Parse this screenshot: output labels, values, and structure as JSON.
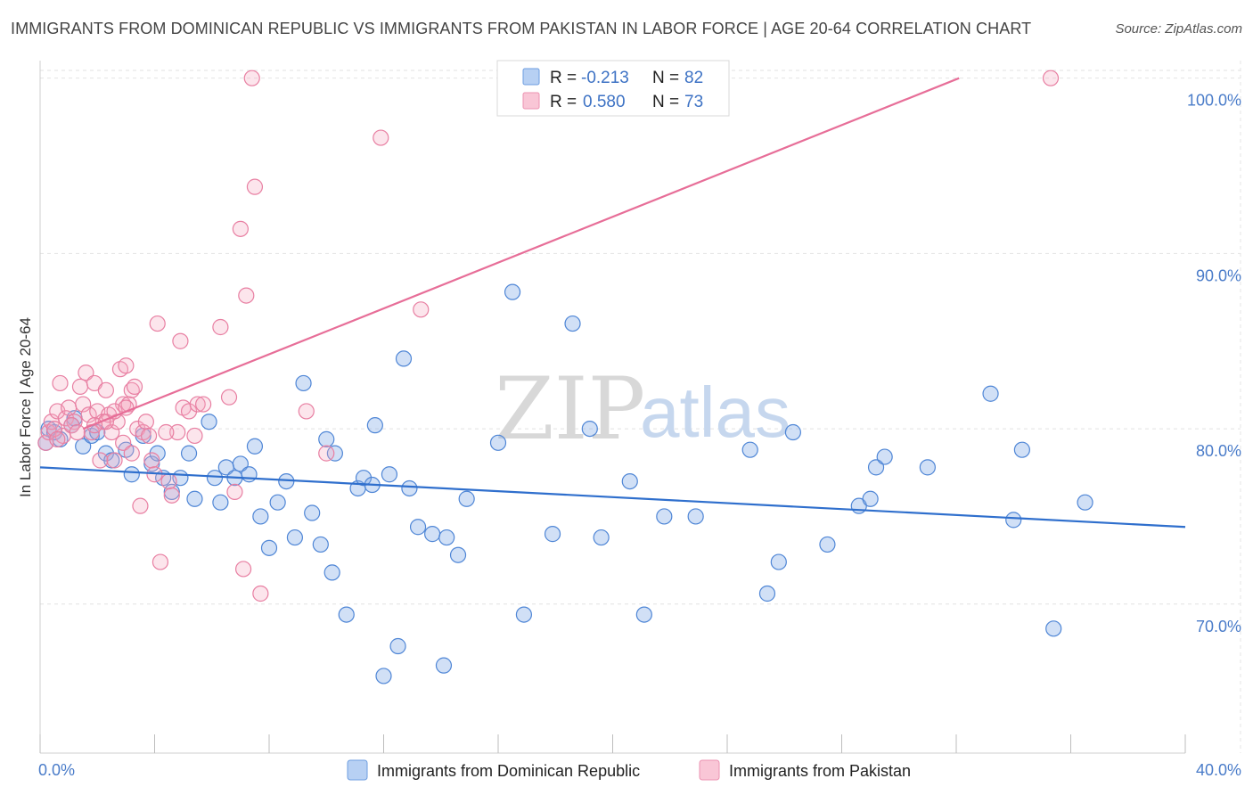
{
  "header": {
    "title": "IMMIGRANTS FROM DOMINICAN REPUBLIC VS IMMIGRANTS FROM PAKISTAN IN LABOR FORCE | AGE 20-64 CORRELATION CHART",
    "source": "Source: ZipAtlas.com"
  },
  "watermark": {
    "zip": "ZIP",
    "atlas": "atlas"
  },
  "legend_stats": {
    "r_label": "R =",
    "n_label": "N =",
    "series1": {
      "r": "-0.213",
      "n": "82"
    },
    "series2": {
      "r": "0.580",
      "n": "73"
    }
  },
  "chart_data": {
    "type": "scatter",
    "title": "IMMIGRANTS FROM DOMINICAN REPUBLIC VS IMMIGRANTS FROM PAKISTAN IN LABOR FORCE | AGE 20-64 CORRELATION CHART",
    "xlabel": "",
    "ylabel": "In Labor Force | Age 20-64",
    "xlim": [
      0,
      40
    ],
    "ylim": [
      61.5,
      101
    ],
    "x_tick_labels": [
      "0.0%",
      "40.0%"
    ],
    "y_ticks": [
      70,
      80,
      90,
      100
    ],
    "y_tick_labels": [
      "70.0%",
      "80.0%",
      "90.0%",
      "100.0%"
    ],
    "grid": true,
    "legend_position": "bottom",
    "series": [
      {
        "name": "Immigrants from Dominican Republic",
        "color": "#7aa7e6",
        "stroke": "#4f86d6",
        "trend": {
          "x": [
            0,
            40
          ],
          "y": [
            77.8,
            74.4
          ],
          "color": "#2f6fcd"
        },
        "points": [
          [
            0.2,
            79.2
          ],
          [
            0.3,
            80.0
          ],
          [
            0.5,
            79.8
          ],
          [
            0.7,
            79.4
          ],
          [
            1.1,
            80.2
          ],
          [
            1.2,
            80.6
          ],
          [
            1.5,
            79.0
          ],
          [
            1.8,
            79.6
          ],
          [
            2.0,
            79.8
          ],
          [
            2.3,
            78.6
          ],
          [
            2.5,
            78.2
          ],
          [
            3.0,
            78.8
          ],
          [
            3.2,
            77.4
          ],
          [
            3.6,
            79.6
          ],
          [
            3.9,
            78.0
          ],
          [
            4.1,
            78.6
          ],
          [
            4.3,
            77.2
          ],
          [
            4.6,
            76.4
          ],
          [
            4.9,
            77.2
          ],
          [
            5.2,
            78.6
          ],
          [
            5.4,
            76.0
          ],
          [
            5.9,
            80.4
          ],
          [
            6.1,
            77.2
          ],
          [
            6.3,
            75.8
          ],
          [
            6.5,
            77.8
          ],
          [
            6.8,
            77.2
          ],
          [
            7.0,
            78.0
          ],
          [
            7.3,
            77.4
          ],
          [
            7.5,
            79.0
          ],
          [
            7.7,
            75.0
          ],
          [
            8.0,
            73.2
          ],
          [
            8.3,
            75.8
          ],
          [
            8.6,
            77.0
          ],
          [
            8.9,
            73.8
          ],
          [
            9.2,
            82.6
          ],
          [
            9.5,
            75.2
          ],
          [
            9.8,
            73.4
          ],
          [
            10.2,
            71.8
          ],
          [
            10.0,
            79.4
          ],
          [
            10.3,
            78.6
          ],
          [
            10.7,
            69.4
          ],
          [
            11.1,
            76.6
          ],
          [
            11.3,
            77.2
          ],
          [
            11.6,
            76.8
          ],
          [
            11.7,
            80.2
          ],
          [
            12.0,
            65.9
          ],
          [
            12.2,
            77.4
          ],
          [
            12.5,
            67.6
          ],
          [
            12.7,
            84.0
          ],
          [
            12.9,
            76.6
          ],
          [
            13.2,
            74.4
          ],
          [
            13.7,
            74.0
          ],
          [
            14.1,
            66.5
          ],
          [
            14.2,
            73.8
          ],
          [
            14.6,
            72.8
          ],
          [
            14.9,
            76.0
          ],
          [
            16.0,
            79.2
          ],
          [
            16.5,
            87.8
          ],
          [
            16.9,
            69.4
          ],
          [
            17.9,
            74.0
          ],
          [
            18.6,
            86.0
          ],
          [
            19.2,
            80.0
          ],
          [
            19.6,
            73.8
          ],
          [
            20.6,
            77.0
          ],
          [
            21.1,
            69.4
          ],
          [
            21.8,
            75.0
          ],
          [
            22.9,
            75.0
          ],
          [
            24.8,
            78.8
          ],
          [
            25.4,
            70.6
          ],
          [
            25.8,
            72.4
          ],
          [
            26.3,
            79.8
          ],
          [
            27.5,
            73.4
          ],
          [
            28.6,
            75.6
          ],
          [
            29.0,
            76.0
          ],
          [
            29.2,
            77.8
          ],
          [
            29.5,
            78.4
          ],
          [
            31.0,
            77.8
          ],
          [
            33.2,
            82.0
          ],
          [
            34.0,
            74.8
          ],
          [
            34.3,
            78.8
          ],
          [
            35.4,
            68.6
          ],
          [
            36.5,
            75.8
          ]
        ]
      },
      {
        "name": "Immigrants from Pakistan",
        "color": "#f4a8c0",
        "stroke": "#e87fa2",
        "trend": {
          "x": [
            1.5,
            32.1
          ],
          "y": [
            80.0,
            100.0
          ],
          "color": "#e76e98"
        },
        "points": [
          [
            0.2,
            79.2
          ],
          [
            0.3,
            79.8
          ],
          [
            0.4,
            80.4
          ],
          [
            0.6,
            81.0
          ],
          [
            0.7,
            82.6
          ],
          [
            0.8,
            79.6
          ],
          [
            0.9,
            80.6
          ],
          [
            1.0,
            81.2
          ],
          [
            1.2,
            80.4
          ],
          [
            1.4,
            82.4
          ],
          [
            1.5,
            81.4
          ],
          [
            1.6,
            83.2
          ],
          [
            1.7,
            80.8
          ],
          [
            1.8,
            79.8
          ],
          [
            1.9,
            82.6
          ],
          [
            2.0,
            81.0
          ],
          [
            2.1,
            78.2
          ],
          [
            2.2,
            80.4
          ],
          [
            2.3,
            82.2
          ],
          [
            2.4,
            80.8
          ],
          [
            2.5,
            79.8
          ],
          [
            2.6,
            78.2
          ],
          [
            2.7,
            80.4
          ],
          [
            2.8,
            83.4
          ],
          [
            2.9,
            81.4
          ],
          [
            3.0,
            83.6
          ],
          [
            3.1,
            81.4
          ],
          [
            3.2,
            82.2
          ],
          [
            3.3,
            82.4
          ],
          [
            3.4,
            80.0
          ],
          [
            3.5,
            75.6
          ],
          [
            3.6,
            79.8
          ],
          [
            3.7,
            80.4
          ],
          [
            3.8,
            79.6
          ],
          [
            3.9,
            78.2
          ],
          [
            4.0,
            77.4
          ],
          [
            4.1,
            86.0
          ],
          [
            4.2,
            72.4
          ],
          [
            4.5,
            77.0
          ],
          [
            4.6,
            76.2
          ],
          [
            4.8,
            79.8
          ],
          [
            4.9,
            85.0
          ],
          [
            5.0,
            81.2
          ],
          [
            5.2,
            81.0
          ],
          [
            5.4,
            79.6
          ],
          [
            5.5,
            81.4
          ],
          [
            5.7,
            81.4
          ],
          [
            6.3,
            85.8
          ],
          [
            6.6,
            81.8
          ],
          [
            6.8,
            76.4
          ],
          [
            7.0,
            91.4
          ],
          [
            7.1,
            72.0
          ],
          [
            7.2,
            87.6
          ],
          [
            7.4,
            100.0
          ],
          [
            7.5,
            93.8
          ],
          [
            7.7,
            70.6
          ],
          [
            9.3,
            81.0
          ],
          [
            10.0,
            78.6
          ],
          [
            11.9,
            96.6
          ],
          [
            13.3,
            86.8
          ],
          [
            17.5,
            100.0
          ],
          [
            35.3,
            100.0
          ],
          [
            1.1,
            80.2
          ],
          [
            1.3,
            79.8
          ],
          [
            2.3,
            80.4
          ],
          [
            2.6,
            81.0
          ],
          [
            2.9,
            79.2
          ],
          [
            3.2,
            78.6
          ],
          [
            0.5,
            80.0
          ],
          [
            0.6,
            79.4
          ],
          [
            1.9,
            80.2
          ],
          [
            4.4,
            79.8
          ],
          [
            3.0,
            81.2
          ]
        ]
      }
    ]
  }
}
